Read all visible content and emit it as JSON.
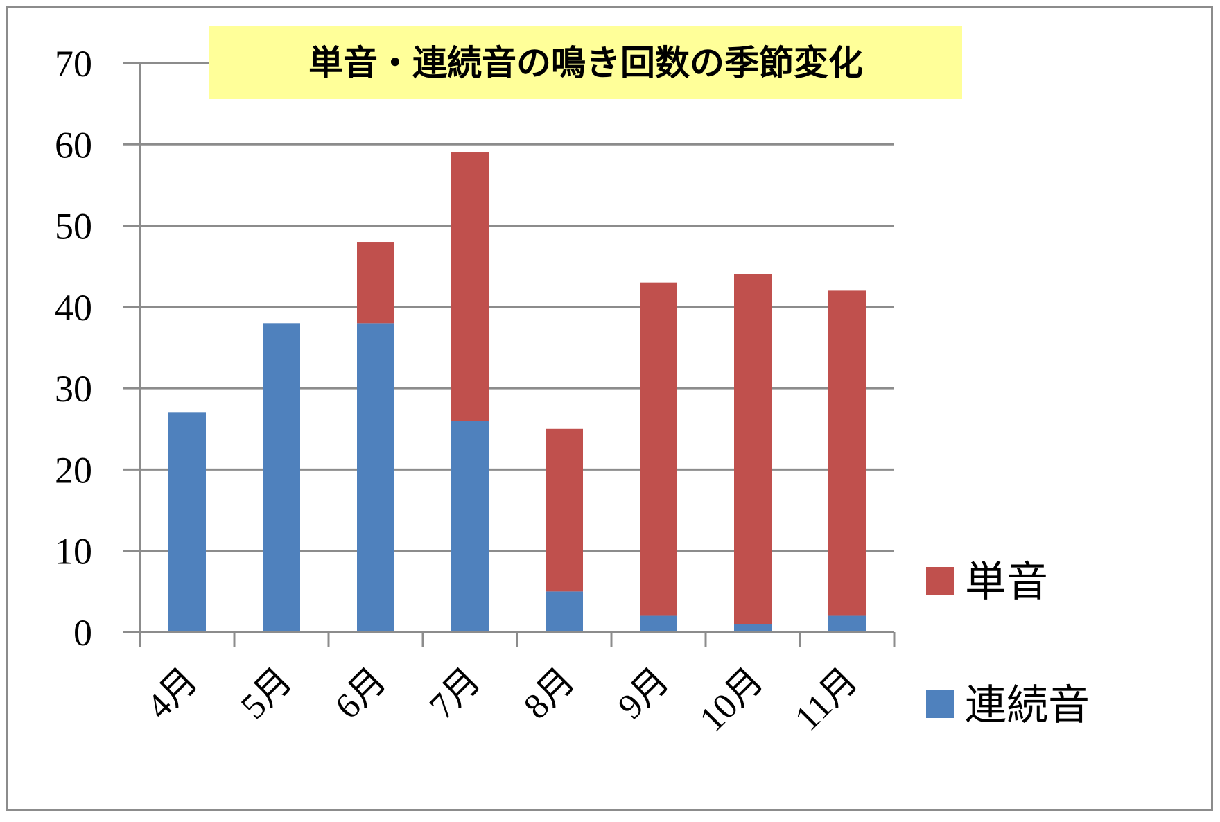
{
  "chart_data": {
    "type": "bar",
    "stacked": true,
    "title": "単音・連続音の鳴き回数の季節変化",
    "categories": [
      "4月",
      "5月",
      "6月",
      "7月",
      "8月",
      "9月",
      "10月",
      "11月"
    ],
    "series": [
      {
        "name": "連続音",
        "color": "#4f81bd",
        "values": [
          27,
          38,
          38,
          26,
          5,
          2,
          1,
          2
        ]
      },
      {
        "name": "単音",
        "color": "#c0504d",
        "values": [
          0,
          0,
          10,
          33,
          20,
          41,
          43,
          40
        ]
      }
    ],
    "ylim": [
      0,
      70
    ],
    "yticks": [
      0,
      10,
      20,
      30,
      40,
      50,
      60,
      70
    ],
    "legend": [
      "単音",
      "連続音"
    ],
    "legend_position": "right",
    "grid": true,
    "xlabel": "",
    "ylabel": ""
  },
  "colors": {
    "gridline": "#8c8c8c",
    "title_background": "#ffff99"
  }
}
